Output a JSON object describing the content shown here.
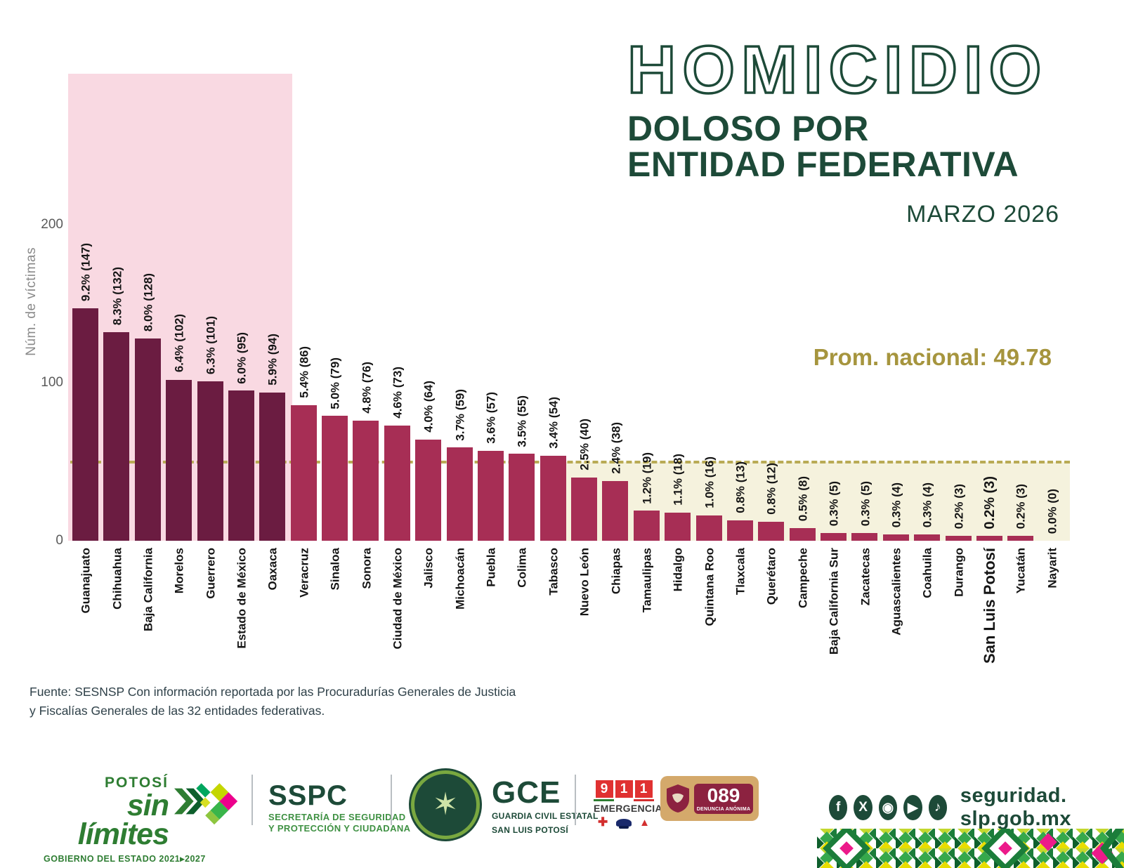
{
  "title": {
    "main": "HOMICIDIO",
    "sub1": "DOLOSO POR",
    "sub2": "ENTIDAD FEDERATIVA",
    "period": "MARZO 2026"
  },
  "average_label": "Prom. nacional: 49.78",
  "chart_data": {
    "type": "bar",
    "title": "Homicidio doloso por entidad federativa — Marzo 2026",
    "ylabel": "Núm. de víctimas",
    "yticks": [
      0,
      100,
      200
    ],
    "ylim": [
      0,
      295
    ],
    "grid": false,
    "legend_position": "none",
    "national_average": 49.78,
    "highlight_top_n": 7,
    "highlight_state": "San Luis Potosí",
    "categories": [
      "Guanajuato",
      "Chihuahua",
      "Baja California",
      "Morelos",
      "Guerrero",
      "Estado de México",
      "Oaxaca",
      "Veracruz",
      "Sinaloa",
      "Sonora",
      "Ciudad de México",
      "Jalisco",
      "Michoacán",
      "Puebla",
      "Colima",
      "Tabasco",
      "Nuevo León",
      "Chiapas",
      "Tamaulipas",
      "Hidalgo",
      "Quintana Roo",
      "Tlaxcala",
      "Querétaro",
      "Campeche",
      "Baja California Sur",
      "Zacatecas",
      "Aguascalientes",
      "Coahuila",
      "Durango",
      "San Luis Potosí",
      "Yucatán",
      "Nayarit"
    ],
    "series": [
      {
        "name": "Víctimas",
        "values": [
          147,
          132,
          128,
          102,
          101,
          95,
          94,
          86,
          79,
          76,
          73,
          64,
          59,
          57,
          55,
          54,
          40,
          38,
          19,
          18,
          16,
          13,
          12,
          8,
          5,
          5,
          4,
          4,
          3,
          3,
          3,
          0
        ]
      }
    ],
    "pct_labels": [
      "9.2%",
      "8.3%",
      "8.0%",
      "6.4%",
      "6.3%",
      "6.0%",
      "5.9%",
      "5.4%",
      "5.0%",
      "4.8%",
      "4.6%",
      "4.0%",
      "3.7%",
      "3.6%",
      "3.5%",
      "3.4%",
      "2.5%",
      "2.4%",
      "1.2%",
      "1.1%",
      "1.0%",
      "0.8%",
      "0.8%",
      "0.5%",
      "0.3%",
      "0.3%",
      "0.3%",
      "0.3%",
      "0.2%",
      "0.2%",
      "0.2%",
      "0.0%"
    ]
  },
  "colors": {
    "bar_dark": "#6b1c41",
    "bar_light": "#a72e55",
    "pink_region": "#f9d9e2",
    "cream_region": "#f5f2dd",
    "avg_line": "#b9ab55",
    "title_green": "#1d4a38",
    "gold": "#a6953e"
  },
  "source": {
    "line1": "Fuente: SESNSP Con información reportada por las  Procuradurías Generales de Justicia",
    "line2": "y  Fiscalías Generales de las 32 entidades federativas."
  },
  "footer": {
    "potosi": {
      "top": "POTOSÍ",
      "script": "sin límites",
      "sub": "GOBIERNO DEL ESTADO 2021▸2027"
    },
    "sspc": {
      "acronym": "SSPC",
      "line1": "SECRETARÍA DE SEGURIDAD",
      "line2": "Y PROTECCIÓN Y CIUDADANA"
    },
    "gce": {
      "acronym": "GCE",
      "line1": "GUARDIA CIVIL ESTATAL",
      "line2": "SAN LUIS POTOSÍ",
      "badge_star": "✶"
    },
    "e911": {
      "digits": [
        "9",
        "1",
        "1"
      ],
      "label": "EMERGENCIAS"
    },
    "d089": {
      "number": "089",
      "label": "DENUNCIA ANÓNIMA"
    },
    "website": "seguridad. slp.gob.mx",
    "social": {
      "facebook": "f",
      "x": "X",
      "instagram": "◉",
      "youtube": "▶",
      "tiktok": "♪"
    }
  }
}
